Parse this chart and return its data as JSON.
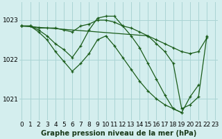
{
  "background_color": "#d4eeee",
  "grid_color": "#aad4d4",
  "line_color": "#1a5c1a",
  "title": "Graphe pression niveau de la mer (hPa)",
  "yticks": [
    1021,
    1022,
    1023
  ],
  "ylim": [
    1020.45,
    1023.45
  ],
  "xlim": [
    -0.3,
    23.3
  ],
  "series": [
    {
      "x": [
        0,
        1,
        2,
        3,
        4,
        5,
        6,
        7,
        8,
        9,
        10,
        11,
        12,
        13,
        14,
        15,
        16,
        17,
        18,
        19,
        20,
        21,
        22
      ],
      "y": [
        1022.85,
        1022.85,
        1022.8,
        1022.8,
        1022.8,
        1022.75,
        1022.7,
        1022.85,
        1022.9,
        1023.0,
        1023.0,
        1022.95,
        1022.85,
        1022.8,
        1022.7,
        1022.6,
        1022.5,
        1022.4,
        1022.3,
        1022.2,
        1022.15,
        1022.2,
        1022.55
      ]
    },
    {
      "x": [
        0,
        1,
        2,
        3,
        4,
        5,
        6,
        7,
        8,
        9,
        10,
        11,
        12,
        13,
        14,
        15,
        16,
        17,
        18,
        19
      ],
      "y": [
        1022.85,
        1022.85,
        1022.75,
        1022.6,
        1022.4,
        1022.25,
        1022.05,
        1022.35,
        1022.75,
        1023.05,
        1023.1,
        1023.1,
        1022.85,
        1022.6,
        1022.3,
        1021.9,
        1021.5,
        1021.1,
        1020.75,
        1020.65
      ]
    },
    {
      "x": [
        0,
        1,
        2,
        3,
        4,
        5,
        6,
        7,
        8,
        9,
        10,
        11,
        12,
        13,
        14,
        15,
        16,
        17,
        18,
        19,
        20,
        21
      ],
      "y": [
        1022.85,
        1022.85,
        1022.7,
        1022.5,
        1022.2,
        1021.95,
        1021.7,
        1021.9,
        1022.15,
        1022.5,
        1022.6,
        1022.35,
        1022.05,
        1021.75,
        1021.45,
        1021.2,
        1021.0,
        1020.85,
        1020.75,
        1020.65,
        1021.05,
        1021.35
      ]
    },
    {
      "x": [
        0,
        15,
        16,
        17,
        18,
        19,
        20,
        21,
        22
      ],
      "y": [
        1022.85,
        1022.6,
        1022.4,
        1022.2,
        1021.9,
        1020.75,
        1020.85,
        1021.05,
        1022.6
      ]
    }
  ],
  "tick_fontsize": 6.5,
  "title_fontsize": 7.2,
  "linewidth": 0.9,
  "marker_size": 3.5
}
